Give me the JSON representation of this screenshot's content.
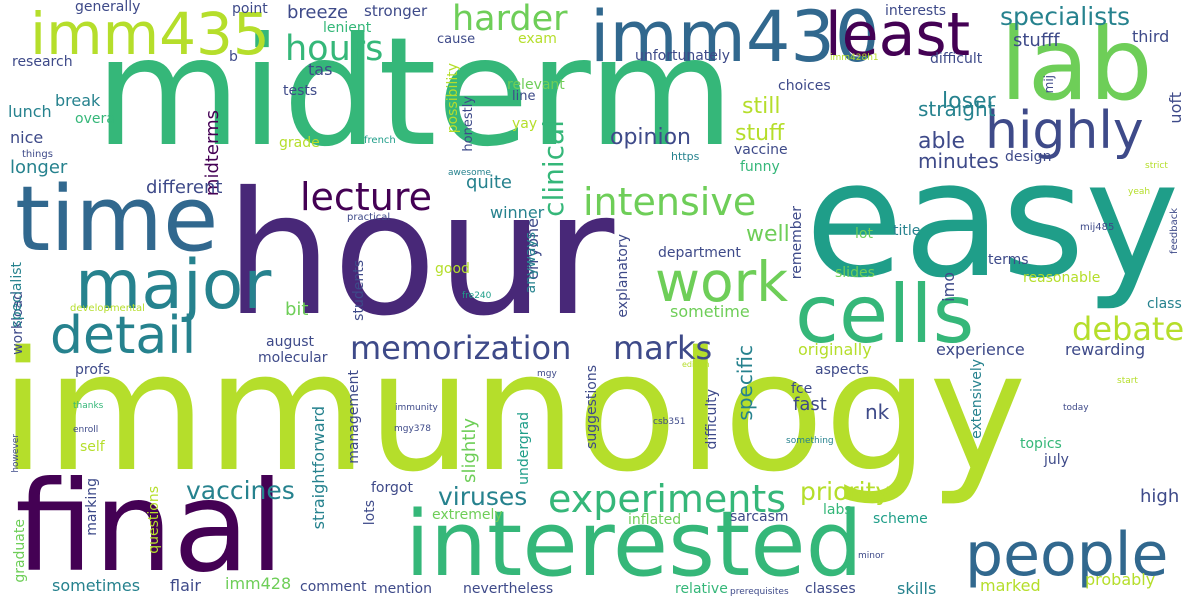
{
  "palette": {
    "background": "#ffffff",
    "dark_purple": "#440154",
    "purple": "#482878",
    "indigo": "#3e4a89",
    "blue": "#31688e",
    "teal_blue": "#26828e",
    "teal": "#1f9e89",
    "green_teal": "#35b779",
    "green": "#6ece58",
    "lime": "#b5de2b",
    "yellow": "#fde725"
  },
  "words": [
    "immunology",
    "midterm",
    "hour",
    "easy",
    "final",
    "interested",
    "lab",
    "time",
    "imm430",
    "imm435",
    "cells",
    "major",
    "least",
    "detail",
    "people",
    "highly",
    "work",
    "lecture",
    "experiments",
    "intensive",
    "memorization",
    "marks",
    "harder",
    "hours",
    "debate",
    "clinical",
    "specialists",
    "vaccines",
    "viruses",
    "priority",
    "opinion",
    "stuff",
    "still",
    "able",
    "well",
    "loser",
    "straight",
    "minutes",
    "stufff",
    "third",
    "breeze",
    "stronger",
    "lenient",
    "generally",
    "point",
    "interests",
    "b",
    "unfortunately",
    "choices",
    "difficult",
    "research",
    "lunch",
    "break",
    "tas",
    "tests",
    "nice",
    "overall",
    "longer",
    "midterms",
    "grade",
    "exam",
    "relevant",
    "yay",
    "honestly",
    "possibility",
    "line",
    "cause",
    "french",
    "things",
    "https",
    "awesome",
    "practical",
    "different",
    "quite",
    "winner",
    "erryone",
    "funny",
    "vaccine",
    "design",
    "uoft",
    "mij",
    "imm428h1",
    "strict",
    "yeah",
    "feedback",
    "title",
    "mij485",
    "lot",
    "remember",
    "terms",
    "department",
    "explanatory",
    "anyways",
    "good",
    "students",
    "slides",
    "reasonable",
    "class",
    "imo",
    "workload",
    "specialist",
    "bit",
    "sometime",
    "developmental",
    "august",
    "fre240",
    "experience",
    "rewarding",
    "originally",
    "molecular",
    "edition",
    "aspects",
    "fce",
    "start",
    "profs",
    "mgy",
    "thanks",
    "immunity",
    "management",
    "straightforward",
    "slightly",
    "undergrad",
    "suggestions",
    "difficulty",
    "specific",
    "fast",
    "nk",
    "csb351",
    "today",
    "extensively",
    "topics",
    "however",
    "enroll",
    "mgy378",
    "self",
    "something",
    "july",
    "high",
    "forgot",
    "extremely",
    "marking",
    "questions",
    "lots",
    "inflated",
    "sarcasm",
    "labs",
    "scheme",
    "graduate",
    "sometimes",
    "flair",
    "imm428",
    "comment",
    "mention",
    "nevertheless",
    "relative",
    "classes",
    "skills",
    "marked",
    "probably",
    "minor",
    "prerequisites"
  ]
}
